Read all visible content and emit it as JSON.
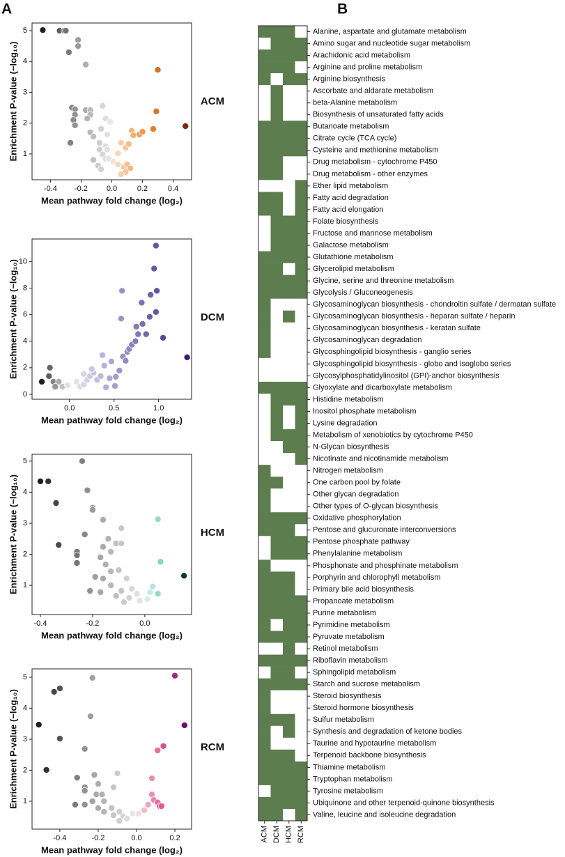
{
  "panels": [
    "A",
    "B"
  ],
  "chart_data": [
    {
      "type": "scatter",
      "label": "ACM",
      "x_label": "Mean pathway fold change (log₂)",
      "y_label": "Enrichment P-value (−log₁₀)",
      "xlim": [
        -0.52,
        0.52
      ],
      "ylim": [
        0.16,
        5.25
      ],
      "xticks": [
        -0.4,
        -0.2,
        {
          "value": 0,
          "label": "0.0"
        },
        0.2,
        0.4
      ],
      "yticks": [
        1,
        2,
        3,
        4,
        5
      ],
      "colormap": {
        "negative": [
          "#ececec",
          "#9a9a9a",
          "#1f1f1f"
        ],
        "positive": [
          "#f6e6d6",
          "#f08a2c",
          "#7a2a0c"
        ]
      },
      "x": [
        -0.45,
        -0.34,
        -0.31,
        -0.3,
        -0.22,
        -0.22,
        -0.28,
        -0.17,
        -0.26,
        -0.24,
        -0.24,
        -0.25,
        -0.24,
        -0.27,
        -0.17,
        -0.14,
        -0.14,
        -0.16,
        -0.06,
        -0.14,
        -0.12,
        -0.04,
        -0.01,
        -0.07,
        -0.03,
        -0.08,
        -0.04,
        -0.03,
        -0.08,
        -0.06,
        -0.04,
        -0.02,
        -0.12,
        -0.09,
        -0.07,
        0.01,
        0.04,
        0.08,
        0.1,
        0.12,
        0.09,
        0.06,
        0.06,
        0.04,
        0.09,
        0.13,
        0.14,
        0.18,
        0.2,
        0.11,
        0.3,
        0.29,
        0.27,
        0.48
      ],
      "values": [
        5.02,
        5.0,
        5.0,
        5.0,
        4.7,
        4.5,
        4.3,
        3.9,
        2.5,
        2.45,
        2.27,
        2.1,
        1.93,
        1.36,
        2.42,
        2.42,
        2.27,
        2.15,
        2.56,
        1.7,
        1.56,
        2.15,
        2.04,
        1.81,
        1.63,
        1.36,
        1.25,
        1.14,
        1.14,
        0.98,
        0.84,
        0.84,
        0.8,
        0.62,
        0.5,
        0.75,
        0.66,
        0.57,
        0.66,
        0.53,
        0.41,
        0.34,
        1.36,
        1.02,
        1.2,
        1.75,
        1.61,
        1.63,
        1.72,
        1.32,
        3.73,
        2.38,
        1.81,
        1.9
      ]
    },
    {
      "type": "scatter",
      "label": "DCM",
      "x_label": "Mean pathway fold change (log₂)",
      "y_label": "Enrichment P-value (−log₁₀)",
      "xlim": [
        -0.42,
        1.37
      ],
      "ylim": [
        -0.37,
        11.7
      ],
      "xticks": [
        {
          "value": 0,
          "label": "0.0"
        },
        0.5,
        {
          "value": 1,
          "label": "1.0"
        }
      ],
      "yticks": [
        0,
        2,
        4,
        6,
        8,
        10
      ],
      "colormap": {
        "negative": [
          "#ececec",
          "#9a9a9a",
          "#1f1f1f"
        ],
        "positive": [
          "#eeecf5",
          "#8f88c4",
          "#3b1b77"
        ]
      },
      "x": [
        -0.31,
        -0.22,
        -0.23,
        -0.18,
        -0.12,
        -0.16,
        -0.08,
        -0.02,
        0.08,
        0.12,
        0.16,
        0.2,
        0.23,
        0.27,
        0.31,
        0.35,
        0.25,
        0.16,
        0.39,
        0.37,
        0.47,
        0.52,
        0.45,
        0.41,
        0.51,
        0.56,
        0.59,
        0.58,
        0.6,
        0.63,
        0.65,
        0.67,
        0.7,
        0.74,
        0.77,
        0.75,
        0.82,
        0.81,
        0.86,
        0.9,
        0.91,
        0.95,
        0.97,
        0.98,
        0.97,
        1.05,
        1.32
      ],
      "values": [
        0.95,
        2.0,
        1.37,
        0.95,
        0.95,
        0.58,
        0.58,
        0.68,
        0.95,
        0.58,
        0.74,
        1.1,
        1.37,
        1.63,
        1.1,
        1.37,
        1.9,
        1.53,
        2.16,
        2.95,
        2.47,
        1.32,
        1.21,
        0.53,
        0.63,
        1.79,
        7.8,
        5.7,
        2.84,
        2.53,
        3.2,
        3.42,
        3.74,
        4.0,
        4.53,
        5.1,
        5.3,
        6.9,
        4.53,
        5.84,
        7.5,
        9.47,
        11.2,
        7.8,
        6.2,
        4.26,
        2.79
      ]
    },
    {
      "type": "scatter",
      "label": "HCM",
      "x_label": "Mean pathway fold change (log₂)",
      "y_label": "Enrichment P-value (−log₁₀)",
      "xlim": [
        -0.432,
        0.179
      ],
      "ylim": [
        0.06,
        5.22
      ],
      "xticks": [
        -0.4,
        -0.2,
        {
          "value": 0,
          "label": "0.0"
        }
      ],
      "yticks": [
        1,
        2,
        3,
        4,
        5
      ],
      "colormap": {
        "negative": [
          "#ececec",
          "#9a9a9a",
          "#1f1f1f"
        ],
        "positive": [
          "#e3f4f1",
          "#6fcdbd",
          "#0e3a26"
        ]
      },
      "x": [
        -0.4,
        -0.37,
        -0.34,
        -0.33,
        -0.24,
        -0.22,
        -0.2,
        -0.2,
        -0.23,
        -0.26,
        -0.26,
        -0.26,
        -0.16,
        -0.14,
        -0.11,
        -0.09,
        -0.13,
        -0.09,
        -0.16,
        -0.17,
        -0.15,
        -0.19,
        -0.21,
        -0.16,
        -0.13,
        -0.1,
        -0.13,
        -0.17,
        -0.07,
        -0.05,
        -0.09,
        -0.11,
        -0.06,
        -0.03,
        -0.02,
        -0.08,
        0.01,
        0.03,
        0.02,
        0.05,
        0.06,
        0.05,
        0.15
      ],
      "values": [
        4.35,
        4.35,
        3.65,
        2.3,
        5.0,
        4.06,
        3.5,
        3.43,
        2.64,
        2.08,
        1.97,
        1.72,
        3.11,
        2.5,
        2.35,
        2.35,
        2.08,
        2.84,
        2.24,
        1.9,
        1.67,
        1.27,
        0.82,
        1.22,
        1.45,
        1.49,
        1.0,
        0.78,
        1.22,
        0.89,
        0.82,
        0.66,
        0.6,
        0.73,
        0.51,
        0.46,
        0.55,
        0.96,
        0.78,
        3.13,
        1.76,
        0.73,
        1.31
      ]
    },
    {
      "type": "scatter",
      "label": "RCM",
      "x_label": "Mean pathway fold change (log₂)",
      "y_label": "Enrichment P-value (−log₁₀)",
      "xlim": [
        -0.545,
        0.287
      ],
      "ylim": [
        0.1,
        5.27
      ],
      "xticks": [
        -0.4,
        -0.2,
        {
          "value": 0,
          "label": "0.0"
        },
        0.2
      ],
      "yticks": [
        1,
        2,
        3,
        4,
        5
      ],
      "colormap": {
        "negative": [
          "#ececec",
          "#9a9a9a",
          "#1f1f1f"
        ],
        "positive": [
          "#fbe6ea",
          "#e85a98",
          "#6f0f6e"
        ]
      },
      "x": [
        -0.51,
        -0.47,
        -0.43,
        -0.4,
        -0.4,
        -0.23,
        -0.24,
        -0.27,
        -0.32,
        -0.31,
        -0.27,
        -0.27,
        -0.27,
        -0.22,
        -0.2,
        -0.21,
        -0.23,
        -0.18,
        -0.17,
        -0.12,
        -0.1,
        -0.2,
        -0.17,
        -0.13,
        -0.12,
        -0.09,
        -0.07,
        -0.05,
        -0.09,
        -0.02,
        0.01,
        0.04,
        0.06,
        0.08,
        0.09,
        0.11,
        0.12,
        0.13,
        0.11,
        0.14,
        0.08,
        0.2,
        0.25
      ],
      "values": [
        3.47,
        2.01,
        4.53,
        4.64,
        3.02,
        4.98,
        3.74,
        2.69,
        0.89,
        1.76,
        1.45,
        1.34,
        0.89,
        1.85,
        1.56,
        1.22,
        1.0,
        1.22,
        1.0,
        1.45,
        1.9,
        0.78,
        0.66,
        0.78,
        0.55,
        0.66,
        0.51,
        0.44,
        0.37,
        0.6,
        0.6,
        0.71,
        0.89,
        1.22,
        1.04,
        0.96,
        0.84,
        0.84,
        2.64,
        2.78,
        1.74,
        5.05,
        3.45
      ]
    },
    {
      "type": "heatmap",
      "color": "#5c7d4e",
      "columns": [
        "ACM",
        "DCM",
        "HCM",
        "RCM"
      ],
      "rows": [
        "Alanine, aspartate and glutamate metabolism",
        "Amino sugar and nucleotide sugar metabolism",
        "Arachidonic acid metabolism",
        "Arginine and proline metabolism",
        "Arginine biosynthesis",
        "Ascorbate and aldarate metabolism",
        "beta-Alanine metabolism",
        "Biosynthesis of unsaturated fatty acids",
        "Butanoate metabolism",
        "Citrate cycle (TCA cycle)",
        "Cysteine and methionine metabolism",
        "Drug metabolism - cytochrome P450",
        "Drug metabolism - other enzymes",
        "Ether lipid metabolism",
        "Fatty acid degradation",
        "Fatty acid elongation",
        "Folate biosynthesis",
        "Fructose and mannose metabolism",
        "Galactose metabolism",
        "Glutathione metabolism",
        "Glycerolipid metabolism",
        "Glycine, serine and threonine metabolism",
        "Glycolysis / Gluconeogenesis",
        "Glycosaminoglycan biosynthesis - chondroitin sulfate / dermatan sulfate",
        "Glycosaminoglycan biosynthesis - heparan sulfate / heparin",
        "Glycosaminoglycan biosynthesis - keratan sulfate",
        "Glycosaminoglycan degradation",
        "Glycosphingolipid biosynthesis - ganglio series",
        "Glycosphingolipid biosynthesis - globo and isoglobo series",
        "Glycosylphosphatidylinositol (GPI)-anchor biosynthesis",
        "Glyoxylate and dicarboxylate metabolism",
        "Histidine metabolism",
        "Inositol phosphate metabolism",
        "Lysine degradation",
        "Metabolism of xenobiotics by cytochrome P450",
        "N-Glycan biosynthesis",
        "Nicotinate and nicotinamide metabolism",
        "Nitrogen metabolism",
        "One carbon pool by folate",
        "Other glycan degradation",
        "Other types of O-glycan biosynthesis",
        "Oxidative phosphorylation",
        "Pentose and glucuronate interconversions",
        "Pentose phosphate pathway",
        "Phenylalanine metabolism",
        "Phosphonate and phosphinate metabolism",
        "Porphyrin and chlorophyll metabolism",
        "Primary bile acid biosynthesis",
        "Propanoate metabolism",
        "Purine metabolism",
        "Pyrimidine metabolism",
        "Pyruvate metabolism",
        "Retinol metabolism",
        "Riboflavin metabolism",
        "Sphingolipid metabolism",
        "Starch and sucrose metabolism",
        "Steroid biosynthesis",
        "Steroid hormone biosynthesis",
        "Sulfur metabolism",
        "Synthesis and degradation of ketone bodies",
        "Taurine and hypotaurine metabolism",
        "Terpenoid backbone biosynthesis",
        "Thiamine metabolism",
        "Tryptophan metabolism",
        "Tyrosine metabolism",
        "Ubiquinone and other terpenoid-quinone biosynthesis",
        "Valine, leucine and isoleucine degradation"
      ],
      "values": [
        [
          1,
          1,
          1,
          0
        ],
        [
          0,
          1,
          1,
          1
        ],
        [
          1,
          1,
          1,
          1
        ],
        [
          1,
          1,
          1,
          0
        ],
        [
          1,
          0,
          1,
          1
        ],
        [
          0,
          1,
          0,
          0
        ],
        [
          0,
          1,
          0,
          0
        ],
        [
          0,
          1,
          0,
          0
        ],
        [
          1,
          1,
          1,
          1
        ],
        [
          1,
          1,
          1,
          1
        ],
        [
          1,
          1,
          1,
          1
        ],
        [
          1,
          1,
          0,
          0
        ],
        [
          1,
          1,
          0,
          0
        ],
        [
          0,
          0,
          0,
          1
        ],
        [
          1,
          1,
          0,
          1
        ],
        [
          1,
          1,
          0,
          1
        ],
        [
          0,
          1,
          1,
          1
        ],
        [
          0,
          1,
          1,
          1
        ],
        [
          0,
          1,
          1,
          1
        ],
        [
          1,
          1,
          1,
          1
        ],
        [
          1,
          1,
          0,
          1
        ],
        [
          1,
          1,
          1,
          1
        ],
        [
          1,
          1,
          1,
          1
        ],
        [
          1,
          0,
          0,
          0
        ],
        [
          1,
          0,
          1,
          0
        ],
        [
          1,
          0,
          0,
          0
        ],
        [
          1,
          0,
          0,
          0
        ],
        [
          1,
          0,
          0,
          0
        ],
        [
          0,
          0,
          0,
          0
        ],
        [
          0,
          0,
          0,
          0
        ],
        [
          1,
          1,
          1,
          1
        ],
        [
          0,
          1,
          1,
          1
        ],
        [
          0,
          1,
          0,
          1
        ],
        [
          0,
          1,
          0,
          1
        ],
        [
          0,
          1,
          1,
          1
        ],
        [
          0,
          0,
          1,
          1
        ],
        [
          0,
          0,
          0,
          1
        ],
        [
          1,
          0,
          0,
          0
        ],
        [
          1,
          1,
          0,
          0
        ],
        [
          1,
          0,
          0,
          0
        ],
        [
          1,
          0,
          0,
          0
        ],
        [
          1,
          1,
          1,
          1
        ],
        [
          1,
          1,
          1,
          0
        ],
        [
          0,
          1,
          1,
          1
        ],
        [
          0,
          1,
          1,
          1
        ],
        [
          1,
          0,
          0,
          0
        ],
        [
          1,
          1,
          1,
          0
        ],
        [
          1,
          1,
          1,
          0
        ],
        [
          1,
          1,
          1,
          1
        ],
        [
          1,
          1,
          1,
          1
        ],
        [
          1,
          0,
          1,
          1
        ],
        [
          1,
          1,
          1,
          1
        ],
        [
          0,
          0,
          1,
          0
        ],
        [
          1,
          1,
          1,
          1
        ],
        [
          0,
          1,
          1,
          0
        ],
        [
          1,
          1,
          1,
          1
        ],
        [
          1,
          0,
          0,
          0
        ],
        [
          1,
          0,
          0,
          0
        ],
        [
          1,
          1,
          1,
          0
        ],
        [
          1,
          0,
          1,
          0
        ],
        [
          1,
          0,
          0,
          0
        ],
        [
          1,
          1,
          1,
          0
        ],
        [
          1,
          1,
          1,
          1
        ],
        [
          1,
          1,
          1,
          1
        ],
        [
          0,
          1,
          1,
          1
        ],
        [
          1,
          1,
          1,
          1
        ],
        [
          1,
          1,
          0,
          1
        ]
      ]
    }
  ]
}
